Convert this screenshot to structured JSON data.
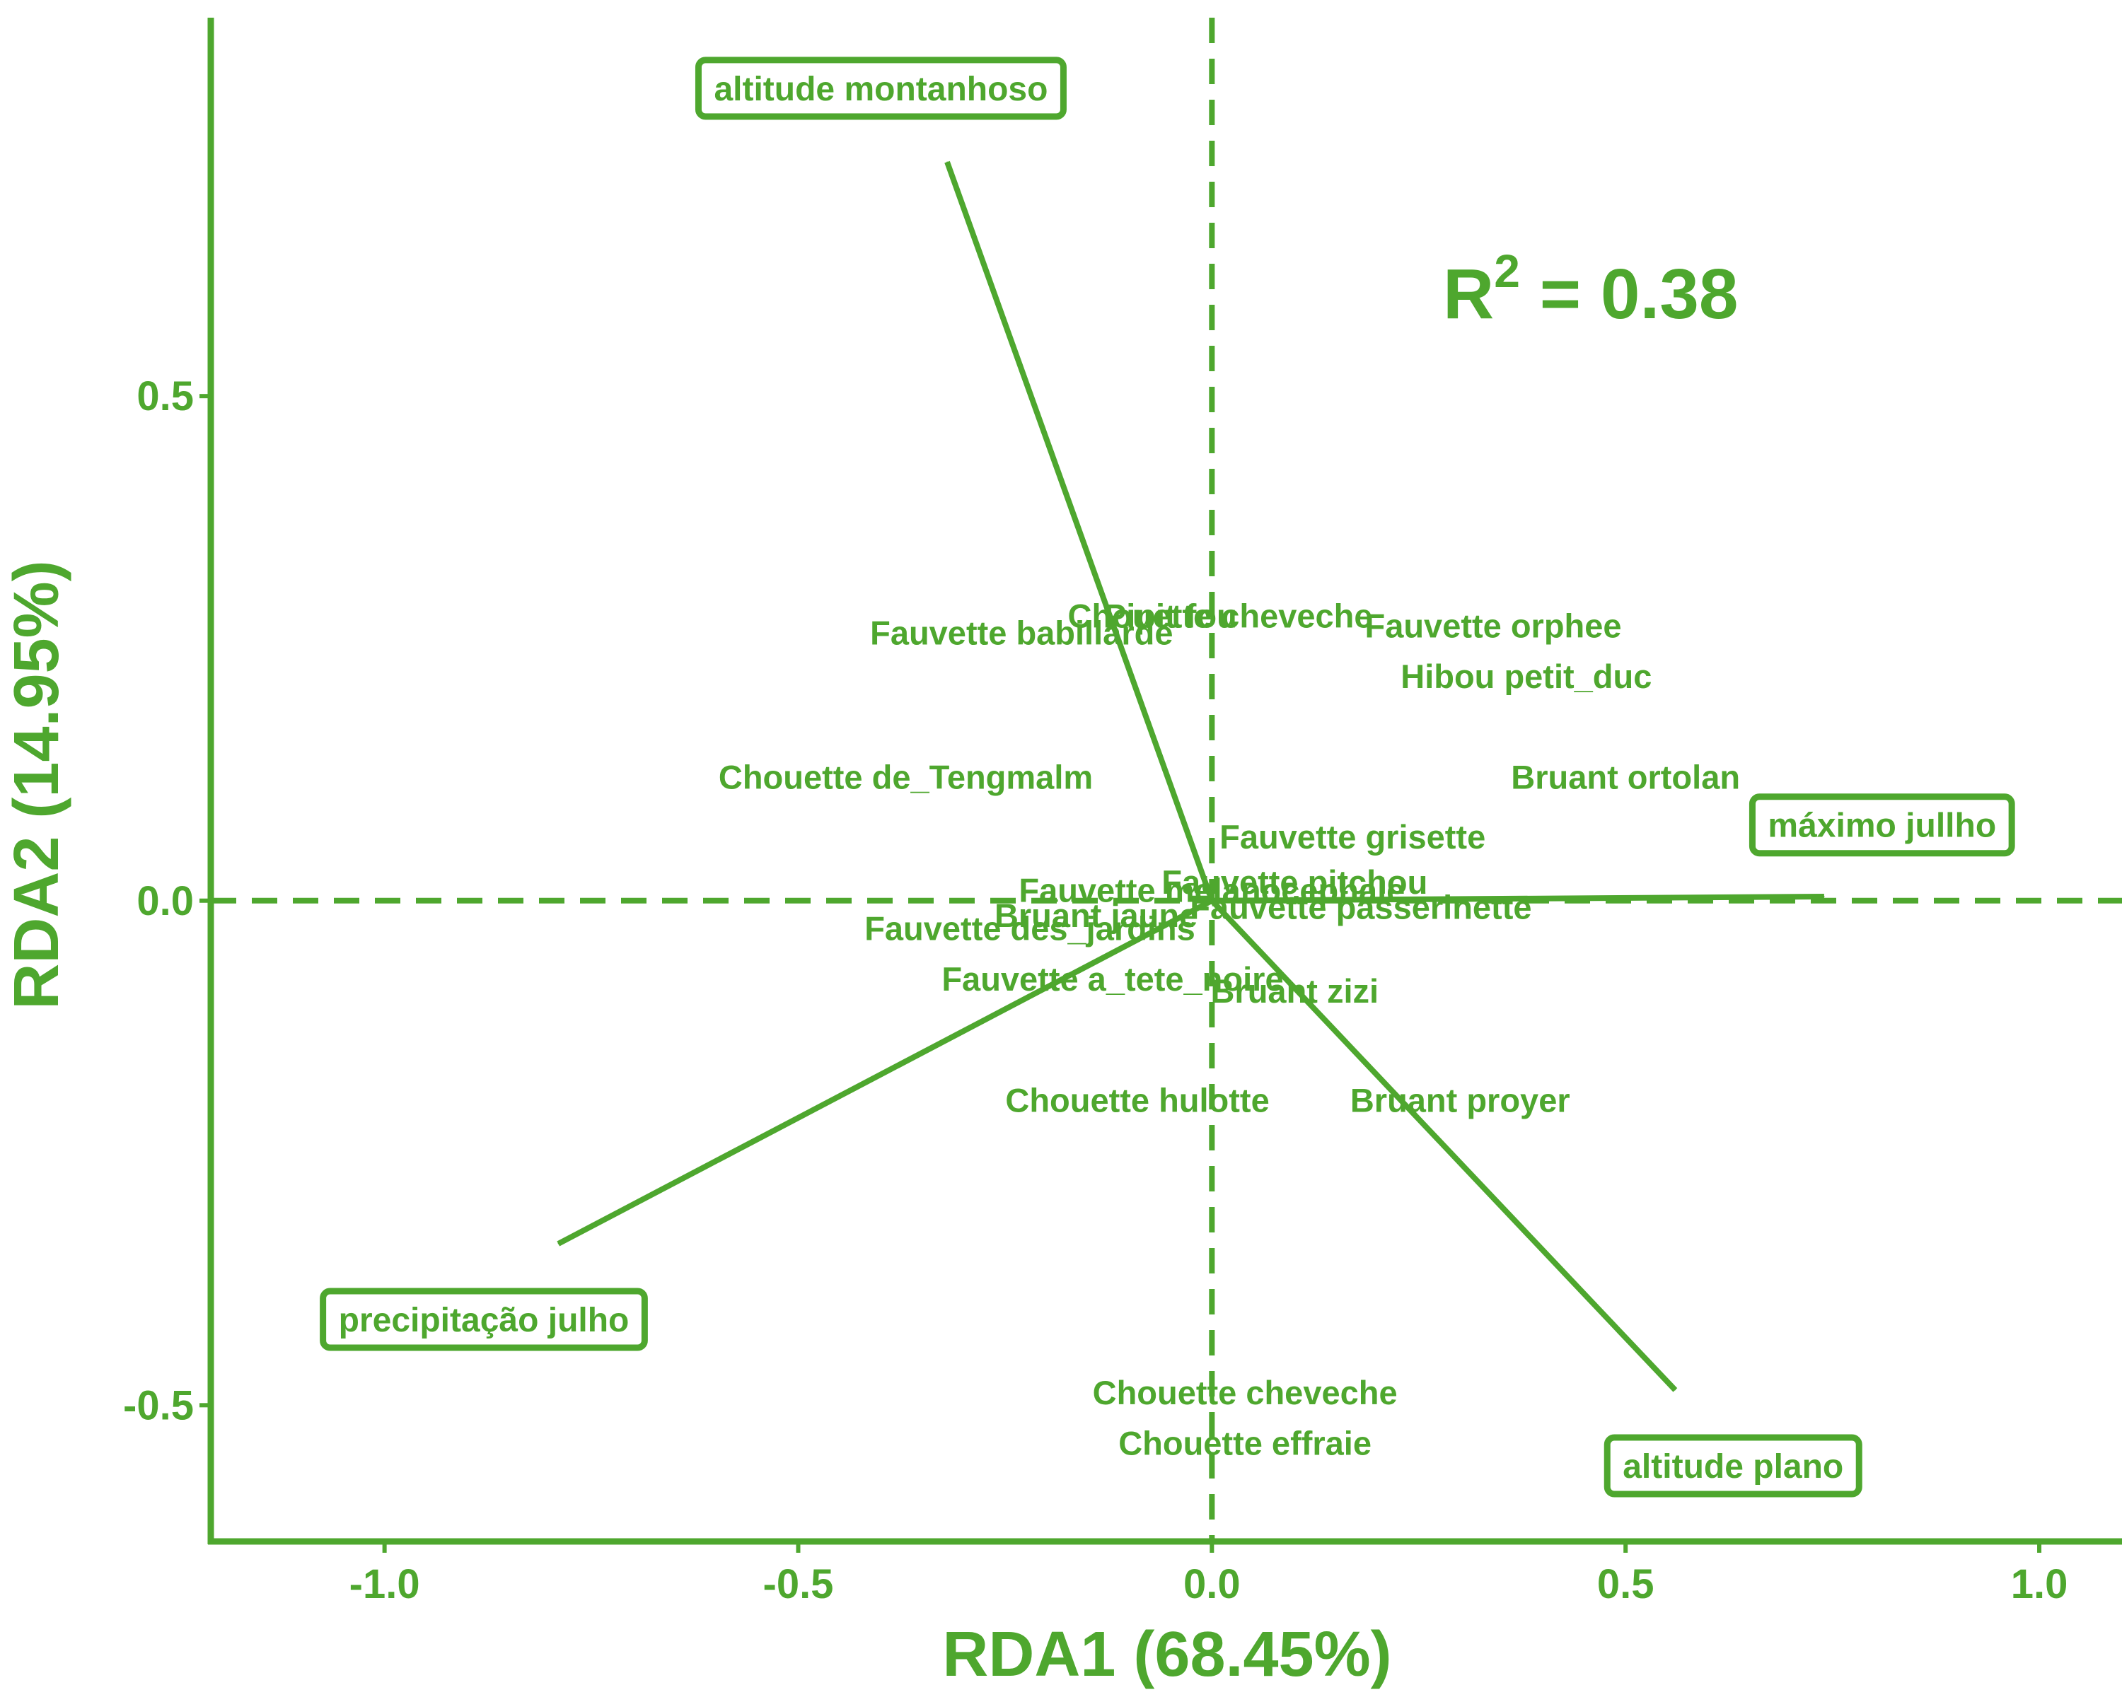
{
  "chart_data": {
    "type": "scatter",
    "title": "",
    "xlabel": "RDA1 (68.45%)",
    "ylabel": "RDA2 (14.95%)",
    "xlim": [
      -1.21,
      1.1
    ],
    "ylim": [
      -0.635,
      0.875
    ],
    "xticks": [
      -1.0,
      -0.5,
      0.0,
      0.5,
      1.0
    ],
    "yticks": [
      -0.5,
      0.0,
      0.5
    ],
    "xtick_labels": [
      "-1.0",
      "-0.5",
      "0.0",
      "0.5",
      "1.0"
    ],
    "ytick_labels": [
      "-0.5",
      "0.0",
      "0.5"
    ],
    "annotation": {
      "prefix": "R",
      "superscript": "2",
      "suffix": " = 0.38"
    },
    "reference_lines": {
      "x": 0,
      "y": 0,
      "style": "dashed"
    },
    "color": "#4ea72e",
    "species": [
      {
        "label": "Chouette cheveche",
        "x": 0.01,
        "y": 0.282
      },
      {
        "label": "Pipit fou",
        "x": -0.05,
        "y": 0.282
      },
      {
        "label": "Fauvette babillarde",
        "x": -0.23,
        "y": 0.265
      },
      {
        "label": "Fauvette orphee",
        "x": 0.34,
        "y": 0.272
      },
      {
        "label": "Hibou petit_duc",
        "x": 0.38,
        "y": 0.222
      },
      {
        "label": "Chouette de_Tengmalm",
        "x": -0.37,
        "y": 0.122
      },
      {
        "label": "Bruant ortolan",
        "x": 0.5,
        "y": 0.122
      },
      {
        "label": "Fauvette grisette",
        "x": 0.17,
        "y": 0.063
      },
      {
        "label": "Fauvette pitchou",
        "x": 0.1,
        "y": 0.018
      },
      {
        "label": "Fauvette melanocephale",
        "x": 0.0,
        "y": 0.01
      },
      {
        "label": "Bruant jaune",
        "x": -0.14,
        "y": -0.015
      },
      {
        "label": "Fauvette passerinette",
        "x": 0.18,
        "y": -0.007
      },
      {
        "label": "Fauvette des_jardins",
        "x": -0.22,
        "y": -0.028
      },
      {
        "label": "Fauvette a_tete_noire",
        "x": -0.12,
        "y": -0.078
      },
      {
        "label": "Bruant zizi",
        "x": 0.1,
        "y": -0.09
      },
      {
        "label": "Chouette hulotte",
        "x": -0.09,
        "y": -0.198
      },
      {
        "label": "Bruant proyer",
        "x": 0.3,
        "y": -0.198
      },
      {
        "label": "Chouette cheveche",
        "x": 0.04,
        "y": -0.488
      },
      {
        "label": "Chouette effraie",
        "x": 0.04,
        "y": -0.538
      }
    ],
    "env_vectors": [
      {
        "label": "altitude montanhoso",
        "x": -0.32,
        "y": 0.732,
        "label_x": -0.4,
        "label_y": 0.805
      },
      {
        "label": "máximo jullho",
        "x": 0.74,
        "y": 0.004,
        "label_x": 0.81,
        "label_y": 0.075
      },
      {
        "label": "precipitação julho",
        "x": -0.79,
        "y": -0.34,
        "label_x": -0.88,
        "label_y": -0.415
      },
      {
        "label": "altitude plano",
        "x": 0.56,
        "y": -0.485,
        "label_x": 0.63,
        "label_y": -0.56
      }
    ]
  }
}
